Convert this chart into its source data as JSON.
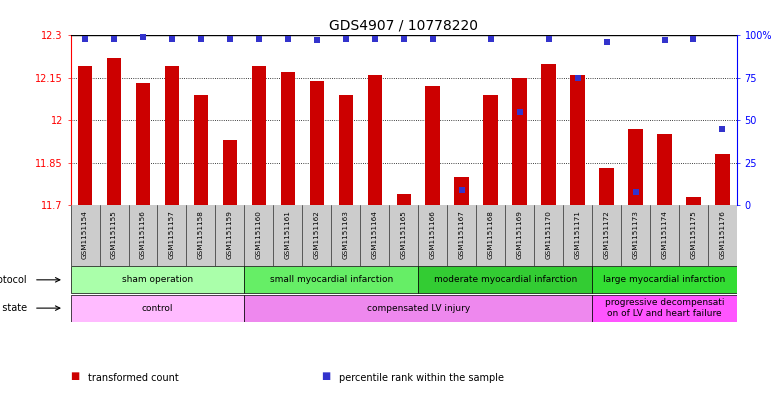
{
  "title": "GDS4907 / 10778220",
  "samples": [
    "GSM1151154",
    "GSM1151155",
    "GSM1151156",
    "GSM1151157",
    "GSM1151158",
    "GSM1151159",
    "GSM1151160",
    "GSM1151161",
    "GSM1151162",
    "GSM1151163",
    "GSM1151164",
    "GSM1151165",
    "GSM1151166",
    "GSM1151167",
    "GSM1151168",
    "GSM1151169",
    "GSM1151170",
    "GSM1151171",
    "GSM1151172",
    "GSM1151173",
    "GSM1151174",
    "GSM1151175",
    "GSM1151176"
  ],
  "bar_values": [
    12.19,
    12.22,
    12.13,
    12.19,
    12.09,
    11.93,
    12.19,
    12.17,
    12.14,
    12.09,
    12.16,
    11.74,
    12.12,
    11.8,
    12.09,
    12.15,
    12.2,
    12.16,
    11.83,
    11.97,
    11.95,
    11.73,
    11.88
  ],
  "percentile_values": [
    98,
    98,
    99,
    98,
    98,
    98,
    98,
    98,
    97,
    98,
    98,
    98,
    98,
    9,
    98,
    55,
    98,
    75,
    96,
    8,
    97,
    98,
    45
  ],
  "bar_color": "#cc0000",
  "dot_color": "#3333cc",
  "ylim_left": [
    11.7,
    12.3
  ],
  "ylim_right": [
    0,
    100
  ],
  "yticks_left": [
    11.7,
    11.85,
    12.0,
    12.15,
    12.3
  ],
  "yticks_right": [
    0,
    25,
    50,
    75,
    100
  ],
  "ytick_labels_left": [
    "11.7",
    "11.85",
    "12",
    "12.15",
    "12.3"
  ],
  "ytick_labels_right": [
    "0",
    "25",
    "50",
    "75",
    "100%"
  ],
  "background_color": "#ffffff",
  "plot_bg_color": "#ffffff",
  "groups": [
    {
      "label": "sham operation",
      "start": 0,
      "end": 5,
      "color": "#aaffaa"
    },
    {
      "label": "small myocardial infarction",
      "start": 6,
      "end": 11,
      "color": "#66ee66"
    },
    {
      "label": "moderate myocardial infarction",
      "start": 12,
      "end": 17,
      "color": "#33cc33"
    },
    {
      "label": "large myocardial infarction",
      "start": 18,
      "end": 22,
      "color": "#33dd33"
    }
  ],
  "disease_groups": [
    {
      "label": "control",
      "start": 0,
      "end": 5,
      "color": "#ffbbff"
    },
    {
      "label": "compensated LV injury",
      "start": 6,
      "end": 17,
      "color": "#ee88ee"
    },
    {
      "label": "progressive decompensati\non of LV and heart failure",
      "start": 18,
      "end": 22,
      "color": "#ff55ff"
    }
  ],
  "legend_items": [
    {
      "label": "transformed count",
      "color": "#cc0000"
    },
    {
      "label": "percentile rank within the sample",
      "color": "#3333cc"
    }
  ],
  "xlim_left": -0.5,
  "xlim_right": 22.5,
  "bar_width": 0.5,
  "dot_size": 4
}
